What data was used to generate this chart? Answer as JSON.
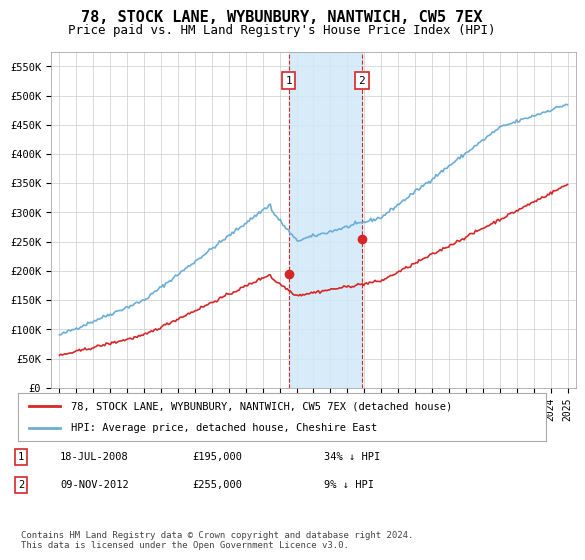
{
  "title": "78, STOCK LANE, WYBUNBURY, NANTWICH, CW5 7EX",
  "subtitle": "Price paid vs. HM Land Registry's House Price Index (HPI)",
  "title_fontsize": 11,
  "subtitle_fontsize": 9,
  "ylim": [
    0,
    575000
  ],
  "yticks": [
    0,
    50000,
    100000,
    150000,
    200000,
    250000,
    300000,
    350000,
    400000,
    450000,
    500000,
    550000
  ],
  "ytick_labels": [
    "£0",
    "£50K",
    "£100K",
    "£150K",
    "£200K",
    "£250K",
    "£300K",
    "£350K",
    "£400K",
    "£450K",
    "£500K",
    "£550K"
  ],
  "hpi_color": "#6baed6",
  "price_color": "#d62728",
  "sale1_date_num": 2008.54,
  "sale1_price": 195000,
  "sale1_label": "1",
  "sale2_date_num": 2012.86,
  "sale2_price": 255000,
  "sale2_label": "2",
  "shade_color": "#d0e8f8",
  "legend_label_price": "78, STOCK LANE, WYBUNBURY, NANTWICH, CW5 7EX (detached house)",
  "legend_label_hpi": "HPI: Average price, detached house, Cheshire East",
  "table_rows": [
    {
      "num": "1",
      "date": "18-JUL-2008",
      "price": "£195,000",
      "pct": "34% ↓ HPI"
    },
    {
      "num": "2",
      "date": "09-NOV-2012",
      "price": "£255,000",
      "pct": "9% ↓ HPI"
    }
  ],
  "footnote": "Contains HM Land Registry data © Crown copyright and database right 2024.\nThis data is licensed under the Open Government Licence v3.0.",
  "background_color": "#ffffff",
  "grid_color": "#cccccc",
  "start_year": 1995,
  "end_year": 2025,
  "points_per_year": 12
}
